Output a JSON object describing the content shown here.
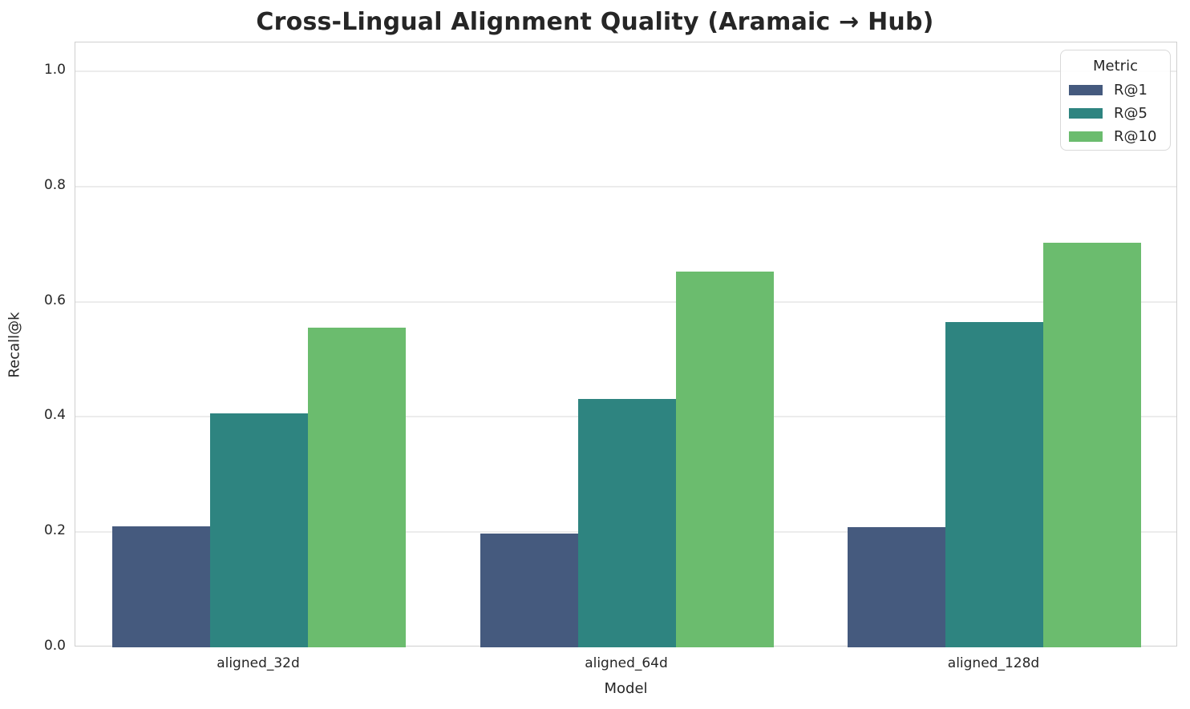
{
  "figure": {
    "title": "Cross-Lingual Alignment Quality (Aramaic → Hub)"
  },
  "chart_data": {
    "type": "bar",
    "title": "Cross-Lingual Alignment Quality (Aramaic → Hub)",
    "xlabel": "Model",
    "ylabel": "Recall@k",
    "categories": [
      "aligned_32d",
      "aligned_64d",
      "aligned_128d"
    ],
    "series": [
      {
        "name": "R@1",
        "color": "#455a7e",
        "values": [
          0.21,
          0.197,
          0.209
        ]
      },
      {
        "name": "R@5",
        "color": "#2e8480",
        "values": [
          0.406,
          0.431,
          0.565
        ]
      },
      {
        "name": "R@10",
        "color": "#6bbc6e",
        "values": [
          0.555,
          0.652,
          0.702
        ]
      }
    ],
    "ylim": [
      0,
      1.05
    ],
    "yticks": [
      0.0,
      0.2,
      0.4,
      0.6,
      0.8,
      1.0
    ],
    "ytick_labels": [
      "0.0",
      "0.2",
      "0.4",
      "0.6",
      "0.8",
      "1.0"
    ],
    "grid": "horizontal",
    "legend": {
      "title": "Metric",
      "position": "upper right"
    }
  },
  "colors": {
    "grid": "#ececec",
    "spine": "#cfcfcf",
    "text": "#262626",
    "legend_border": "#d9d9d9",
    "background": "#ffffff"
  }
}
